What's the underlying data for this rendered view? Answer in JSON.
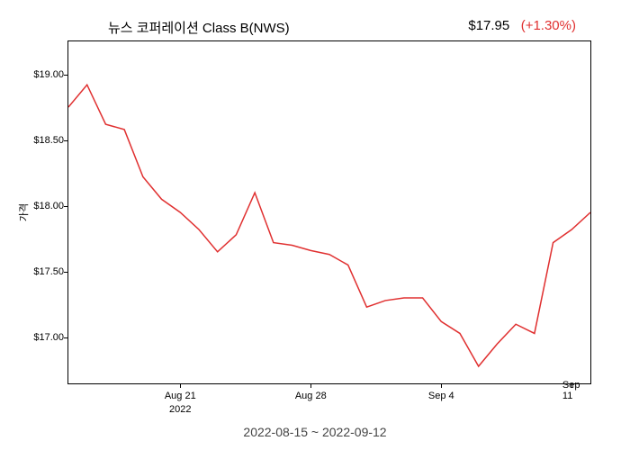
{
  "chart": {
    "type": "line",
    "title": "뉴스 코퍼레이션 Class B(NWS)",
    "price": "$17.95",
    "change": "(+1.30%)",
    "ylabel": "가격",
    "date_range": "2022-08-15 ~ 2022-09-12",
    "background_color": "#ffffff",
    "border_color": "#000000",
    "line_color": "#e03030",
    "line_width": 1.5,
    "title_fontsize": 15,
    "tick_fontsize": 11,
    "y_ticks": [
      {
        "label": "$17.00",
        "value": 17.0
      },
      {
        "label": "$17.50",
        "value": 17.5
      },
      {
        "label": "$18.00",
        "value": 18.0
      },
      {
        "label": "$18.50",
        "value": 18.5
      },
      {
        "label": "$19.00",
        "value": 19.0
      }
    ],
    "ylim": [
      16.65,
      19.25
    ],
    "x_ticks": [
      {
        "label": "Aug 21",
        "index": 6,
        "year": "2022"
      },
      {
        "label": "Aug 28",
        "index": 13
      },
      {
        "label": "Sep 4",
        "index": 20
      },
      {
        "label": "Sep 11",
        "index": 27
      }
    ],
    "x_count": 29,
    "values": [
      18.75,
      18.92,
      18.62,
      18.58,
      18.22,
      18.05,
      17.95,
      17.82,
      17.65,
      17.78,
      18.1,
      17.72,
      17.7,
      17.66,
      17.63,
      17.55,
      17.23,
      17.28,
      17.3,
      17.3,
      17.12,
      17.03,
      16.78,
      16.95,
      17.1,
      17.03,
      17.72,
      17.82,
      17.95
    ]
  }
}
